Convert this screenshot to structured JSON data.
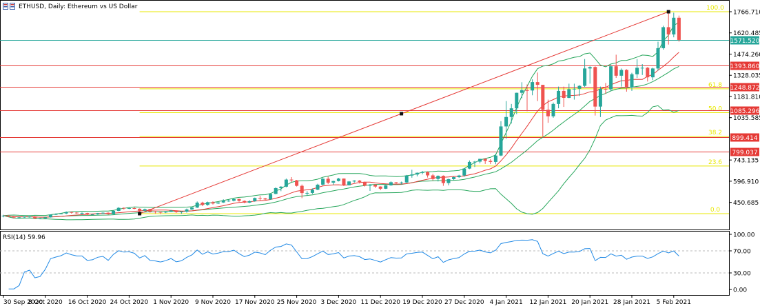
{
  "header": {
    "title": "ETHUSD, Daily:  Ethereum vs US Dollar"
  },
  "rsi_panel": {
    "label": "RSI(14) 59.96"
  },
  "chart_data": {
    "type": "candlestick",
    "symbol": "ETHUSD",
    "timeframe": "Daily",
    "price_axis": {
      "min": 372.92,
      "max": 1766.71,
      "tick_labels": [
        "1766.710",
        "1620.485",
        "1474.260",
        "1328.035",
        "1181.810",
        "1035.585",
        "743.135",
        "596.910",
        "450.685"
      ]
    },
    "x_axis": {
      "start": "2020-09-30",
      "end": "2021-02-06",
      "tick_labels": [
        {
          "date": "2020-09-30",
          "label": "30 Sep 2020"
        },
        {
          "date": "2020-10-08",
          "label": "8 Oct 2020"
        },
        {
          "date": "2020-10-16",
          "label": "16 Oct 2020"
        },
        {
          "date": "2020-10-24",
          "label": "24 Oct 2020"
        },
        {
          "date": "2020-11-01",
          "label": "1 Nov 2020"
        },
        {
          "date": "2020-11-09",
          "label": "9 Nov 2020"
        },
        {
          "date": "2020-11-17",
          "label": "17 Nov 2020"
        },
        {
          "date": "2020-11-25",
          "label": "25 Nov 2020"
        },
        {
          "date": "2020-12-03",
          "label": "3 Dec 2020"
        },
        {
          "date": "2020-12-11",
          "label": "11 Dec 2020"
        },
        {
          "date": "2020-12-19",
          "label": "19 Dec 2020"
        },
        {
          "date": "2020-12-27",
          "label": "27 Dec 2020"
        },
        {
          "date": "2021-01-04",
          "label": "4 Jan 2021"
        },
        {
          "date": "2021-01-12",
          "label": "12 Jan 2021"
        },
        {
          "date": "2021-01-20",
          "label": "20 Jan 2021"
        },
        {
          "date": "2021-01-28",
          "label": "28 Jan 2021"
        },
        {
          "date": "2021-02-05",
          "label": "5 Feb 2021"
        }
      ]
    },
    "horizontal_levels": [
      {
        "price": 1571.52,
        "label": "1571.520",
        "color": "#26a69a",
        "kind": "current-price"
      },
      {
        "price": 1393.86,
        "label": "1393.860",
        "color": "#e53935",
        "kind": "resistance"
      },
      {
        "price": 1248.872,
        "label": "1248.872",
        "color": "#e53935",
        "kind": "resistance"
      },
      {
        "price": 1085.296,
        "label": "1085.296",
        "color": "#e53935",
        "kind": "support"
      },
      {
        "price": 899.414,
        "label": "899.414",
        "color": "#e53935",
        "kind": "support"
      },
      {
        "price": 799.037,
        "label": "799.037",
        "color": "#e53935",
        "kind": "support"
      }
    ],
    "fibonacci": {
      "color": "#e8e800",
      "start_date": "2020-10-26",
      "levels": [
        {
          "label": "100.0",
          "price": 1766.71
        },
        {
          "label": "61.8",
          "price": 1234.3
        },
        {
          "label": "50.0",
          "price": 1069.8
        },
        {
          "label": "38.2",
          "price": 905.3
        },
        {
          "label": "23.6",
          "price": 701.8
        },
        {
          "label": "0.0",
          "price": 373.0
        }
      ]
    },
    "trendline": {
      "color": "#e53935",
      "start": {
        "date": "2020-10-26",
        "price": 373.0
      },
      "end": {
        "date": "2021-02-04",
        "price": 1766.71
      },
      "mid_marker": {
        "date": "2020-12-15",
        "price": 1070.0
      }
    },
    "colors": {
      "up": "#26a69a",
      "down": "#ef5350",
      "bollinger": "#26a65b",
      "moving_average": "#e53935",
      "rsi": "#1e88e5",
      "grid_dash": "#b8b8b8"
    },
    "candles": [
      {
        "d": "2020-09-30",
        "o": 356,
        "h": 365,
        "l": 348,
        "c": 359
      },
      {
        "d": "2020-10-01",
        "o": 359,
        "h": 363,
        "l": 350,
        "c": 353
      },
      {
        "d": "2020-10-02",
        "o": 353,
        "h": 356,
        "l": 340,
        "c": 346
      },
      {
        "d": "2020-10-03",
        "o": 346,
        "h": 350,
        "l": 343,
        "c": 347
      },
      {
        "d": "2020-10-04",
        "o": 347,
        "h": 354,
        "l": 345,
        "c": 352
      },
      {
        "d": "2020-10-05",
        "o": 352,
        "h": 355,
        "l": 346,
        "c": 353
      },
      {
        "d": "2020-10-06",
        "o": 353,
        "h": 356,
        "l": 336,
        "c": 340
      },
      {
        "d": "2020-10-07",
        "o": 340,
        "h": 344,
        "l": 337,
        "c": 341
      },
      {
        "d": "2020-10-08",
        "o": 341,
        "h": 350,
        "l": 337,
        "c": 348
      },
      {
        "d": "2020-10-09",
        "o": 348,
        "h": 368,
        "l": 346,
        "c": 366
      },
      {
        "d": "2020-10-10",
        "o": 366,
        "h": 375,
        "l": 364,
        "c": 370
      },
      {
        "d": "2020-10-11",
        "o": 370,
        "h": 376,
        "l": 368,
        "c": 374
      },
      {
        "d": "2020-10-12",
        "o": 374,
        "h": 388,
        "l": 370,
        "c": 384
      },
      {
        "d": "2020-10-13",
        "o": 384,
        "h": 386,
        "l": 373,
        "c": 380
      },
      {
        "d": "2020-10-14",
        "o": 380,
        "h": 383,
        "l": 372,
        "c": 377
      },
      {
        "d": "2020-10-15",
        "o": 377,
        "h": 381,
        "l": 366,
        "c": 377
      },
      {
        "d": "2020-10-16",
        "o": 377,
        "h": 379,
        "l": 360,
        "c": 366
      },
      {
        "d": "2020-10-17",
        "o": 366,
        "h": 370,
        "l": 363,
        "c": 368
      },
      {
        "d": "2020-10-18",
        "o": 368,
        "h": 378,
        "l": 366,
        "c": 376
      },
      {
        "d": "2020-10-19",
        "o": 376,
        "h": 383,
        "l": 372,
        "c": 379
      },
      {
        "d": "2020-10-20",
        "o": 379,
        "h": 382,
        "l": 366,
        "c": 369
      },
      {
        "d": "2020-10-21",
        "o": 369,
        "h": 395,
        "l": 367,
        "c": 392
      },
      {
        "d": "2020-10-22",
        "o": 392,
        "h": 418,
        "l": 390,
        "c": 413
      },
      {
        "d": "2020-10-23",
        "o": 413,
        "h": 416,
        "l": 401,
        "c": 409
      },
      {
        "d": "2020-10-24",
        "o": 409,
        "h": 414,
        "l": 404,
        "c": 411
      },
      {
        "d": "2020-10-25",
        "o": 411,
        "h": 417,
        "l": 403,
        "c": 407
      },
      {
        "d": "2020-10-26",
        "o": 407,
        "h": 409,
        "l": 385,
        "c": 393
      },
      {
        "d": "2020-10-27",
        "o": 393,
        "h": 408,
        "l": 390,
        "c": 404
      },
      {
        "d": "2020-10-28",
        "o": 404,
        "h": 406,
        "l": 380,
        "c": 387
      },
      {
        "d": "2020-10-29",
        "o": 387,
        "h": 392,
        "l": 374,
        "c": 385
      },
      {
        "d": "2020-10-30",
        "o": 385,
        "h": 386,
        "l": 370,
        "c": 381
      },
      {
        "d": "2020-10-31",
        "o": 381,
        "h": 391,
        "l": 377,
        "c": 386
      },
      {
        "d": "2020-11-01",
        "o": 386,
        "h": 398,
        "l": 384,
        "c": 395
      },
      {
        "d": "2020-11-02",
        "o": 395,
        "h": 396,
        "l": 378,
        "c": 383
      },
      {
        "d": "2020-11-03",
        "o": 383,
        "h": 389,
        "l": 372,
        "c": 387
      },
      {
        "d": "2020-11-04",
        "o": 387,
        "h": 408,
        "l": 380,
        "c": 402
      },
      {
        "d": "2020-11-05",
        "o": 402,
        "h": 418,
        "l": 398,
        "c": 415
      },
      {
        "d": "2020-11-06",
        "o": 415,
        "h": 457,
        "l": 412,
        "c": 449
      },
      {
        "d": "2020-11-07",
        "o": 449,
        "h": 455,
        "l": 425,
        "c": 433
      },
      {
        "d": "2020-11-08",
        "o": 433,
        "h": 456,
        "l": 428,
        "c": 452
      },
      {
        "d": "2020-11-09",
        "o": 452,
        "h": 458,
        "l": 436,
        "c": 443
      },
      {
        "d": "2020-11-10",
        "o": 443,
        "h": 453,
        "l": 440,
        "c": 450
      },
      {
        "d": "2020-11-11",
        "o": 450,
        "h": 472,
        "l": 447,
        "c": 462
      },
      {
        "d": "2020-11-12",
        "o": 462,
        "h": 470,
        "l": 455,
        "c": 462
      },
      {
        "d": "2020-11-13",
        "o": 462,
        "h": 478,
        "l": 457,
        "c": 474
      },
      {
        "d": "2020-11-14",
        "o": 474,
        "h": 476,
        "l": 455,
        "c": 461
      },
      {
        "d": "2020-11-15",
        "o": 461,
        "h": 464,
        "l": 445,
        "c": 449
      },
      {
        "d": "2020-11-16",
        "o": 449,
        "h": 465,
        "l": 445,
        "c": 459
      },
      {
        "d": "2020-11-17",
        "o": 459,
        "h": 484,
        "l": 455,
        "c": 481
      },
      {
        "d": "2020-11-18",
        "o": 481,
        "h": 496,
        "l": 463,
        "c": 478
      },
      {
        "d": "2020-11-19",
        "o": 478,
        "h": 482,
        "l": 466,
        "c": 471
      },
      {
        "d": "2020-11-20",
        "o": 471,
        "h": 510,
        "l": 469,
        "c": 509
      },
      {
        "d": "2020-11-21",
        "o": 509,
        "h": 555,
        "l": 507,
        "c": 549
      },
      {
        "d": "2020-11-22",
        "o": 549,
        "h": 563,
        "l": 528,
        "c": 559
      },
      {
        "d": "2020-11-23",
        "o": 559,
        "h": 615,
        "l": 555,
        "c": 608
      },
      {
        "d": "2020-11-24",
        "o": 608,
        "h": 625,
        "l": 590,
        "c": 603
      },
      {
        "d": "2020-11-25",
        "o": 603,
        "h": 606,
        "l": 560,
        "c": 565
      },
      {
        "d": "2020-11-26",
        "o": 565,
        "h": 574,
        "l": 480,
        "c": 515
      },
      {
        "d": "2020-11-27",
        "o": 515,
        "h": 528,
        "l": 496,
        "c": 516
      },
      {
        "d": "2020-11-28",
        "o": 516,
        "h": 547,
        "l": 509,
        "c": 538
      },
      {
        "d": "2020-11-29",
        "o": 538,
        "h": 579,
        "l": 535,
        "c": 573
      },
      {
        "d": "2020-11-30",
        "o": 573,
        "h": 618,
        "l": 568,
        "c": 614
      },
      {
        "d": "2020-12-01",
        "o": 614,
        "h": 628,
        "l": 577,
        "c": 587
      },
      {
        "d": "2020-12-02",
        "o": 587,
        "h": 600,
        "l": 572,
        "c": 598
      },
      {
        "d": "2020-12-03",
        "o": 598,
        "h": 620,
        "l": 595,
        "c": 615
      },
      {
        "d": "2020-12-04",
        "o": 615,
        "h": 616,
        "l": 563,
        "c": 569
      },
      {
        "d": "2020-12-05",
        "o": 569,
        "h": 598,
        "l": 567,
        "c": 595
      },
      {
        "d": "2020-12-06",
        "o": 595,
        "h": 604,
        "l": 587,
        "c": 601
      },
      {
        "d": "2020-12-07",
        "o": 601,
        "h": 605,
        "l": 581,
        "c": 592
      },
      {
        "d": "2020-12-08",
        "o": 592,
        "h": 594,
        "l": 560,
        "c": 566
      },
      {
        "d": "2020-12-09",
        "o": 566,
        "h": 577,
        "l": 530,
        "c": 573
      },
      {
        "d": "2020-12-10",
        "o": 573,
        "h": 576,
        "l": 550,
        "c": 560
      },
      {
        "d": "2020-12-11",
        "o": 560,
        "h": 562,
        "l": 535,
        "c": 545
      },
      {
        "d": "2020-12-12",
        "o": 545,
        "h": 570,
        "l": 543,
        "c": 568
      },
      {
        "d": "2020-12-13",
        "o": 568,
        "h": 596,
        "l": 565,
        "c": 590
      },
      {
        "d": "2020-12-14",
        "o": 590,
        "h": 591,
        "l": 575,
        "c": 586
      },
      {
        "d": "2020-12-15",
        "o": 586,
        "h": 594,
        "l": 576,
        "c": 588
      },
      {
        "d": "2020-12-16",
        "o": 588,
        "h": 640,
        "l": 584,
        "c": 636
      },
      {
        "d": "2020-12-17",
        "o": 636,
        "h": 676,
        "l": 621,
        "c": 643
      },
      {
        "d": "2020-12-18",
        "o": 643,
        "h": 657,
        "l": 630,
        "c": 655
      },
      {
        "d": "2020-12-19",
        "o": 655,
        "h": 668,
        "l": 644,
        "c": 659
      },
      {
        "d": "2020-12-20",
        "o": 659,
        "h": 665,
        "l": 622,
        "c": 637
      },
      {
        "d": "2020-12-21",
        "o": 637,
        "h": 648,
        "l": 602,
        "c": 612
      },
      {
        "d": "2020-12-22",
        "o": 612,
        "h": 637,
        "l": 595,
        "c": 634
      },
      {
        "d": "2020-12-23",
        "o": 634,
        "h": 637,
        "l": 565,
        "c": 584
      },
      {
        "d": "2020-12-24",
        "o": 584,
        "h": 614,
        "l": 568,
        "c": 611
      },
      {
        "d": "2020-12-25",
        "o": 611,
        "h": 628,
        "l": 604,
        "c": 625
      },
      {
        "d": "2020-12-26",
        "o": 625,
        "h": 641,
        "l": 620,
        "c": 636
      },
      {
        "d": "2020-12-27",
        "o": 636,
        "h": 686,
        "l": 628,
        "c": 684
      },
      {
        "d": "2020-12-28",
        "o": 684,
        "h": 740,
        "l": 680,
        "c": 730
      },
      {
        "d": "2020-12-29",
        "o": 730,
        "h": 737,
        "l": 695,
        "c": 732
      },
      {
        "d": "2020-12-30",
        "o": 732,
        "h": 752,
        "l": 720,
        "c": 751
      },
      {
        "d": "2020-12-31",
        "o": 751,
        "h": 754,
        "l": 716,
        "c": 737
      },
      {
        "d": "2021-01-01",
        "o": 737,
        "h": 749,
        "l": 715,
        "c": 730
      },
      {
        "d": "2021-01-02",
        "o": 730,
        "h": 787,
        "l": 714,
        "c": 774
      },
      {
        "d": "2021-01-03",
        "o": 774,
        "h": 1011,
        "l": 770,
        "c": 975
      },
      {
        "d": "2021-01-04",
        "o": 975,
        "h": 1150,
        "l": 890,
        "c": 1040
      },
      {
        "d": "2021-01-05",
        "o": 1040,
        "h": 1130,
        "l": 995,
        "c": 1100
      },
      {
        "d": "2021-01-06",
        "o": 1100,
        "h": 1208,
        "l": 1060,
        "c": 1207
      },
      {
        "d": "2021-01-07",
        "o": 1207,
        "h": 1280,
        "l": 1170,
        "c": 1225
      },
      {
        "d": "2021-01-08",
        "o": 1225,
        "h": 1265,
        "l": 1080,
        "c": 1223
      },
      {
        "d": "2021-01-09",
        "o": 1223,
        "h": 1300,
        "l": 1190,
        "c": 1281
      },
      {
        "d": "2021-01-10",
        "o": 1281,
        "h": 1347,
        "l": 1150,
        "c": 1262
      },
      {
        "d": "2021-01-11",
        "o": 1262,
        "h": 1262,
        "l": 900,
        "c": 1090
      },
      {
        "d": "2021-01-12",
        "o": 1090,
        "h": 1160,
        "l": 1000,
        "c": 1045
      },
      {
        "d": "2021-01-13",
        "o": 1045,
        "h": 1140,
        "l": 1035,
        "c": 1130
      },
      {
        "d": "2021-01-14",
        "o": 1130,
        "h": 1250,
        "l": 1100,
        "c": 1220
      },
      {
        "d": "2021-01-15",
        "o": 1220,
        "h": 1250,
        "l": 1110,
        "c": 1172
      },
      {
        "d": "2021-01-16",
        "o": 1172,
        "h": 1270,
        "l": 1170,
        "c": 1232
      },
      {
        "d": "2021-01-17",
        "o": 1232,
        "h": 1270,
        "l": 1160,
        "c": 1235
      },
      {
        "d": "2021-01-18",
        "o": 1235,
        "h": 1260,
        "l": 1185,
        "c": 1255
      },
      {
        "d": "2021-01-19",
        "o": 1255,
        "h": 1440,
        "l": 1245,
        "c": 1375
      },
      {
        "d": "2021-01-20",
        "o": 1375,
        "h": 1390,
        "l": 1270,
        "c": 1385
      },
      {
        "d": "2021-01-21",
        "o": 1385,
        "h": 1390,
        "l": 1050,
        "c": 1112
      },
      {
        "d": "2021-01-22",
        "o": 1112,
        "h": 1250,
        "l": 1040,
        "c": 1234
      },
      {
        "d": "2021-01-23",
        "o": 1234,
        "h": 1275,
        "l": 1200,
        "c": 1231
      },
      {
        "d": "2021-01-24",
        "o": 1231,
        "h": 1400,
        "l": 1220,
        "c": 1390
      },
      {
        "d": "2021-01-25",
        "o": 1390,
        "h": 1470,
        "l": 1310,
        "c": 1325
      },
      {
        "d": "2021-01-26",
        "o": 1325,
        "h": 1375,
        "l": 1250,
        "c": 1365
      },
      {
        "d": "2021-01-27",
        "o": 1365,
        "h": 1370,
        "l": 1215,
        "c": 1245
      },
      {
        "d": "2021-01-28",
        "o": 1245,
        "h": 1345,
        "l": 1220,
        "c": 1335
      },
      {
        "d": "2021-01-29",
        "o": 1335,
        "h": 1440,
        "l": 1310,
        "c": 1380
      },
      {
        "d": "2021-01-30",
        "o": 1380,
        "h": 1405,
        "l": 1330,
        "c": 1380
      },
      {
        "d": "2021-01-31",
        "o": 1380,
        "h": 1385,
        "l": 1285,
        "c": 1314
      },
      {
        "d": "2021-02-01",
        "o": 1314,
        "h": 1380,
        "l": 1295,
        "c": 1375
      },
      {
        "d": "2021-02-02",
        "o": 1375,
        "h": 1560,
        "l": 1360,
        "c": 1515
      },
      {
        "d": "2021-02-03",
        "o": 1515,
        "h": 1670,
        "l": 1505,
        "c": 1660
      },
      {
        "d": "2021-02-04",
        "o": 1660,
        "h": 1766,
        "l": 1540,
        "c": 1610
      },
      {
        "d": "2021-02-05",
        "o": 1610,
        "h": 1760,
        "l": 1590,
        "c": 1725
      },
      {
        "d": "2021-02-06",
        "o": 1725,
        "h": 1740,
        "l": 1560,
        "c": 1572
      }
    ],
    "rsi": {
      "period": 14,
      "axis_labels": [
        "100.00",
        "70.00",
        "30.00",
        "0.00"
      ],
      "levels": [
        70,
        30
      ]
    }
  }
}
